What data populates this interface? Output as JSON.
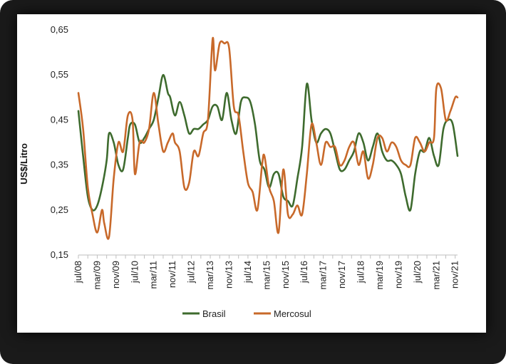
{
  "chart_data": {
    "type": "line",
    "title": "",
    "xlabel": "",
    "ylabel": "US$/Litro",
    "ylim": [
      0.15,
      0.65
    ],
    "yticks": [
      "0,15",
      "0,25",
      "0,35",
      "0,45",
      "0,55",
      "0,65"
    ],
    "ytick_values": [
      0.15,
      0.25,
      0.35,
      0.45,
      0.55,
      0.65
    ],
    "x_start": "2008-07",
    "x_end": "2021-12",
    "xticks": [
      {
        "label": "jul/08",
        "date": "2008-07"
      },
      {
        "label": "mar/09",
        "date": "2009-03"
      },
      {
        "label": "nov/09",
        "date": "2009-11"
      },
      {
        "label": "jul/10",
        "date": "2010-07"
      },
      {
        "label": "mar/11",
        "date": "2011-03"
      },
      {
        "label": "nov/11",
        "date": "2011-11"
      },
      {
        "label": "jul/12",
        "date": "2012-07"
      },
      {
        "label": "mar/13",
        "date": "2013-03"
      },
      {
        "label": "nov/13",
        "date": "2013-11"
      },
      {
        "label": "jul/14",
        "date": "2014-07"
      },
      {
        "label": "mar/15",
        "date": "2015-03"
      },
      {
        "label": "nov/15",
        "date": "2015-11"
      },
      {
        "label": "jul/16",
        "date": "2016-07"
      },
      {
        "label": "mar/17",
        "date": "2017-03"
      },
      {
        "label": "nov/17",
        "date": "2017-11"
      },
      {
        "label": "jul/18",
        "date": "2018-07"
      },
      {
        "label": "mar/19",
        "date": "2019-03"
      },
      {
        "label": "nov/19",
        "date": "2019-11"
      },
      {
        "label": "jul/20",
        "date": "2020-07"
      },
      {
        "label": "mar/21",
        "date": "2021-03"
      },
      {
        "label": "nov/21",
        "date": "2021-11"
      }
    ],
    "grid": false,
    "legend_position": "bottom",
    "series": [
      {
        "name": "Brasil",
        "color": "#3e6b2e",
        "points": [
          [
            "2008-07",
            0.47
          ],
          [
            "2008-09",
            0.37
          ],
          [
            "2008-11",
            0.28
          ],
          [
            "2009-01",
            0.25
          ],
          [
            "2009-03",
            0.26
          ],
          [
            "2009-05",
            0.3
          ],
          [
            "2009-07",
            0.36
          ],
          [
            "2009-08",
            0.42
          ],
          [
            "2009-10",
            0.4
          ],
          [
            "2009-12",
            0.35
          ],
          [
            "2010-02",
            0.34
          ],
          [
            "2010-04",
            0.41
          ],
          [
            "2010-05",
            0.44
          ],
          [
            "2010-07",
            0.44
          ],
          [
            "2010-09",
            0.4
          ],
          [
            "2010-11",
            0.41
          ],
          [
            "2011-01",
            0.43
          ],
          [
            "2011-03",
            0.45
          ],
          [
            "2011-05",
            0.5
          ],
          [
            "2011-07",
            0.55
          ],
          [
            "2011-09",
            0.51
          ],
          [
            "2011-10",
            0.5
          ],
          [
            "2011-12",
            0.46
          ],
          [
            "2012-02",
            0.49
          ],
          [
            "2012-04",
            0.46
          ],
          [
            "2012-06",
            0.42
          ],
          [
            "2012-08",
            0.43
          ],
          [
            "2012-10",
            0.43
          ],
          [
            "2012-12",
            0.44
          ],
          [
            "2013-02",
            0.45
          ],
          [
            "2013-04",
            0.48
          ],
          [
            "2013-06",
            0.48
          ],
          [
            "2013-08",
            0.45
          ],
          [
            "2013-10",
            0.51
          ],
          [
            "2013-12",
            0.45
          ],
          [
            "2014-02",
            0.42
          ],
          [
            "2014-04",
            0.49
          ],
          [
            "2014-06",
            0.5
          ],
          [
            "2014-08",
            0.49
          ],
          [
            "2014-10",
            0.44
          ],
          [
            "2014-12",
            0.36
          ],
          [
            "2015-02",
            0.34
          ],
          [
            "2015-04",
            0.3
          ],
          [
            "2015-06",
            0.33
          ],
          [
            "2015-08",
            0.33
          ],
          [
            "2015-10",
            0.28
          ],
          [
            "2015-12",
            0.27
          ],
          [
            "2016-02",
            0.26
          ],
          [
            "2016-04",
            0.32
          ],
          [
            "2016-06",
            0.39
          ],
          [
            "2016-08",
            0.53
          ],
          [
            "2016-10",
            0.45
          ],
          [
            "2016-12",
            0.4
          ],
          [
            "2017-02",
            0.42
          ],
          [
            "2017-04",
            0.43
          ],
          [
            "2017-06",
            0.42
          ],
          [
            "2017-08",
            0.38
          ],
          [
            "2017-10",
            0.34
          ],
          [
            "2017-12",
            0.34
          ],
          [
            "2018-02",
            0.36
          ],
          [
            "2018-04",
            0.38
          ],
          [
            "2018-06",
            0.42
          ],
          [
            "2018-08",
            0.4
          ],
          [
            "2018-10",
            0.36
          ],
          [
            "2018-12",
            0.39
          ],
          [
            "2019-02",
            0.42
          ],
          [
            "2019-04",
            0.38
          ],
          [
            "2019-06",
            0.36
          ],
          [
            "2019-08",
            0.36
          ],
          [
            "2019-10",
            0.35
          ],
          [
            "2019-12",
            0.33
          ],
          [
            "2020-02",
            0.28
          ],
          [
            "2020-04",
            0.25
          ],
          [
            "2020-06",
            0.33
          ],
          [
            "2020-08",
            0.38
          ],
          [
            "2020-10",
            0.38
          ],
          [
            "2020-12",
            0.41
          ],
          [
            "2021-02",
            0.37
          ],
          [
            "2021-04",
            0.35
          ],
          [
            "2021-06",
            0.43
          ],
          [
            "2021-08",
            0.45
          ],
          [
            "2021-10",
            0.44
          ],
          [
            "2021-12",
            0.37
          ]
        ]
      },
      {
        "name": "Mercosul",
        "color": "#c8692a",
        "points": [
          [
            "2008-07",
            0.51
          ],
          [
            "2008-09",
            0.43
          ],
          [
            "2008-11",
            0.3
          ],
          [
            "2009-01",
            0.24
          ],
          [
            "2009-03",
            0.2
          ],
          [
            "2009-05",
            0.25
          ],
          [
            "2009-06",
            0.22
          ],
          [
            "2009-08",
            0.19
          ],
          [
            "2009-10",
            0.32
          ],
          [
            "2009-12",
            0.4
          ],
          [
            "2010-02",
            0.38
          ],
          [
            "2010-04",
            0.46
          ],
          [
            "2010-06",
            0.45
          ],
          [
            "2010-07",
            0.33
          ],
          [
            "2010-09",
            0.4
          ],
          [
            "2010-11",
            0.4
          ],
          [
            "2011-01",
            0.43
          ],
          [
            "2011-03",
            0.51
          ],
          [
            "2011-05",
            0.44
          ],
          [
            "2011-07",
            0.38
          ],
          [
            "2011-09",
            0.4
          ],
          [
            "2011-11",
            0.42
          ],
          [
            "2011-12",
            0.4
          ],
          [
            "2012-02",
            0.38
          ],
          [
            "2012-04",
            0.3
          ],
          [
            "2012-06",
            0.31
          ],
          [
            "2012-08",
            0.38
          ],
          [
            "2012-10",
            0.37
          ],
          [
            "2012-12",
            0.42
          ],
          [
            "2013-02",
            0.45
          ],
          [
            "2013-04",
            0.63
          ],
          [
            "2013-05",
            0.56
          ],
          [
            "2013-07",
            0.62
          ],
          [
            "2013-09",
            0.62
          ],
          [
            "2013-11",
            0.61
          ],
          [
            "2014-01",
            0.48
          ],
          [
            "2014-03",
            0.46
          ],
          [
            "2014-05",
            0.38
          ],
          [
            "2014-07",
            0.31
          ],
          [
            "2014-09",
            0.29
          ],
          [
            "2014-11",
            0.25
          ],
          [
            "2015-01",
            0.35
          ],
          [
            "2015-02",
            0.37
          ],
          [
            "2015-04",
            0.3
          ],
          [
            "2015-06",
            0.27
          ],
          [
            "2015-08",
            0.2
          ],
          [
            "2015-10",
            0.34
          ],
          [
            "2015-12",
            0.24
          ],
          [
            "2016-02",
            0.24
          ],
          [
            "2016-04",
            0.26
          ],
          [
            "2016-06",
            0.24
          ],
          [
            "2016-08",
            0.33
          ],
          [
            "2016-10",
            0.44
          ],
          [
            "2016-12",
            0.4
          ],
          [
            "2017-02",
            0.35
          ],
          [
            "2017-04",
            0.4
          ],
          [
            "2017-06",
            0.39
          ],
          [
            "2017-08",
            0.39
          ],
          [
            "2017-10",
            0.35
          ],
          [
            "2017-12",
            0.36
          ],
          [
            "2018-02",
            0.39
          ],
          [
            "2018-04",
            0.4
          ],
          [
            "2018-06",
            0.35
          ],
          [
            "2018-08",
            0.38
          ],
          [
            "2018-10",
            0.32
          ],
          [
            "2018-12",
            0.35
          ],
          [
            "2019-02",
            0.41
          ],
          [
            "2019-04",
            0.41
          ],
          [
            "2019-06",
            0.38
          ],
          [
            "2019-08",
            0.4
          ],
          [
            "2019-10",
            0.39
          ],
          [
            "2019-12",
            0.36
          ],
          [
            "2020-02",
            0.35
          ],
          [
            "2020-04",
            0.35
          ],
          [
            "2020-06",
            0.41
          ],
          [
            "2020-08",
            0.4
          ],
          [
            "2020-10",
            0.38
          ],
          [
            "2020-12",
            0.4
          ],
          [
            "2021-02",
            0.41
          ],
          [
            "2021-03",
            0.52
          ],
          [
            "2021-05",
            0.52
          ],
          [
            "2021-07",
            0.45
          ],
          [
            "2021-09",
            0.47
          ],
          [
            "2021-11",
            0.5
          ],
          [
            "2021-12",
            0.5
          ]
        ]
      }
    ]
  }
}
